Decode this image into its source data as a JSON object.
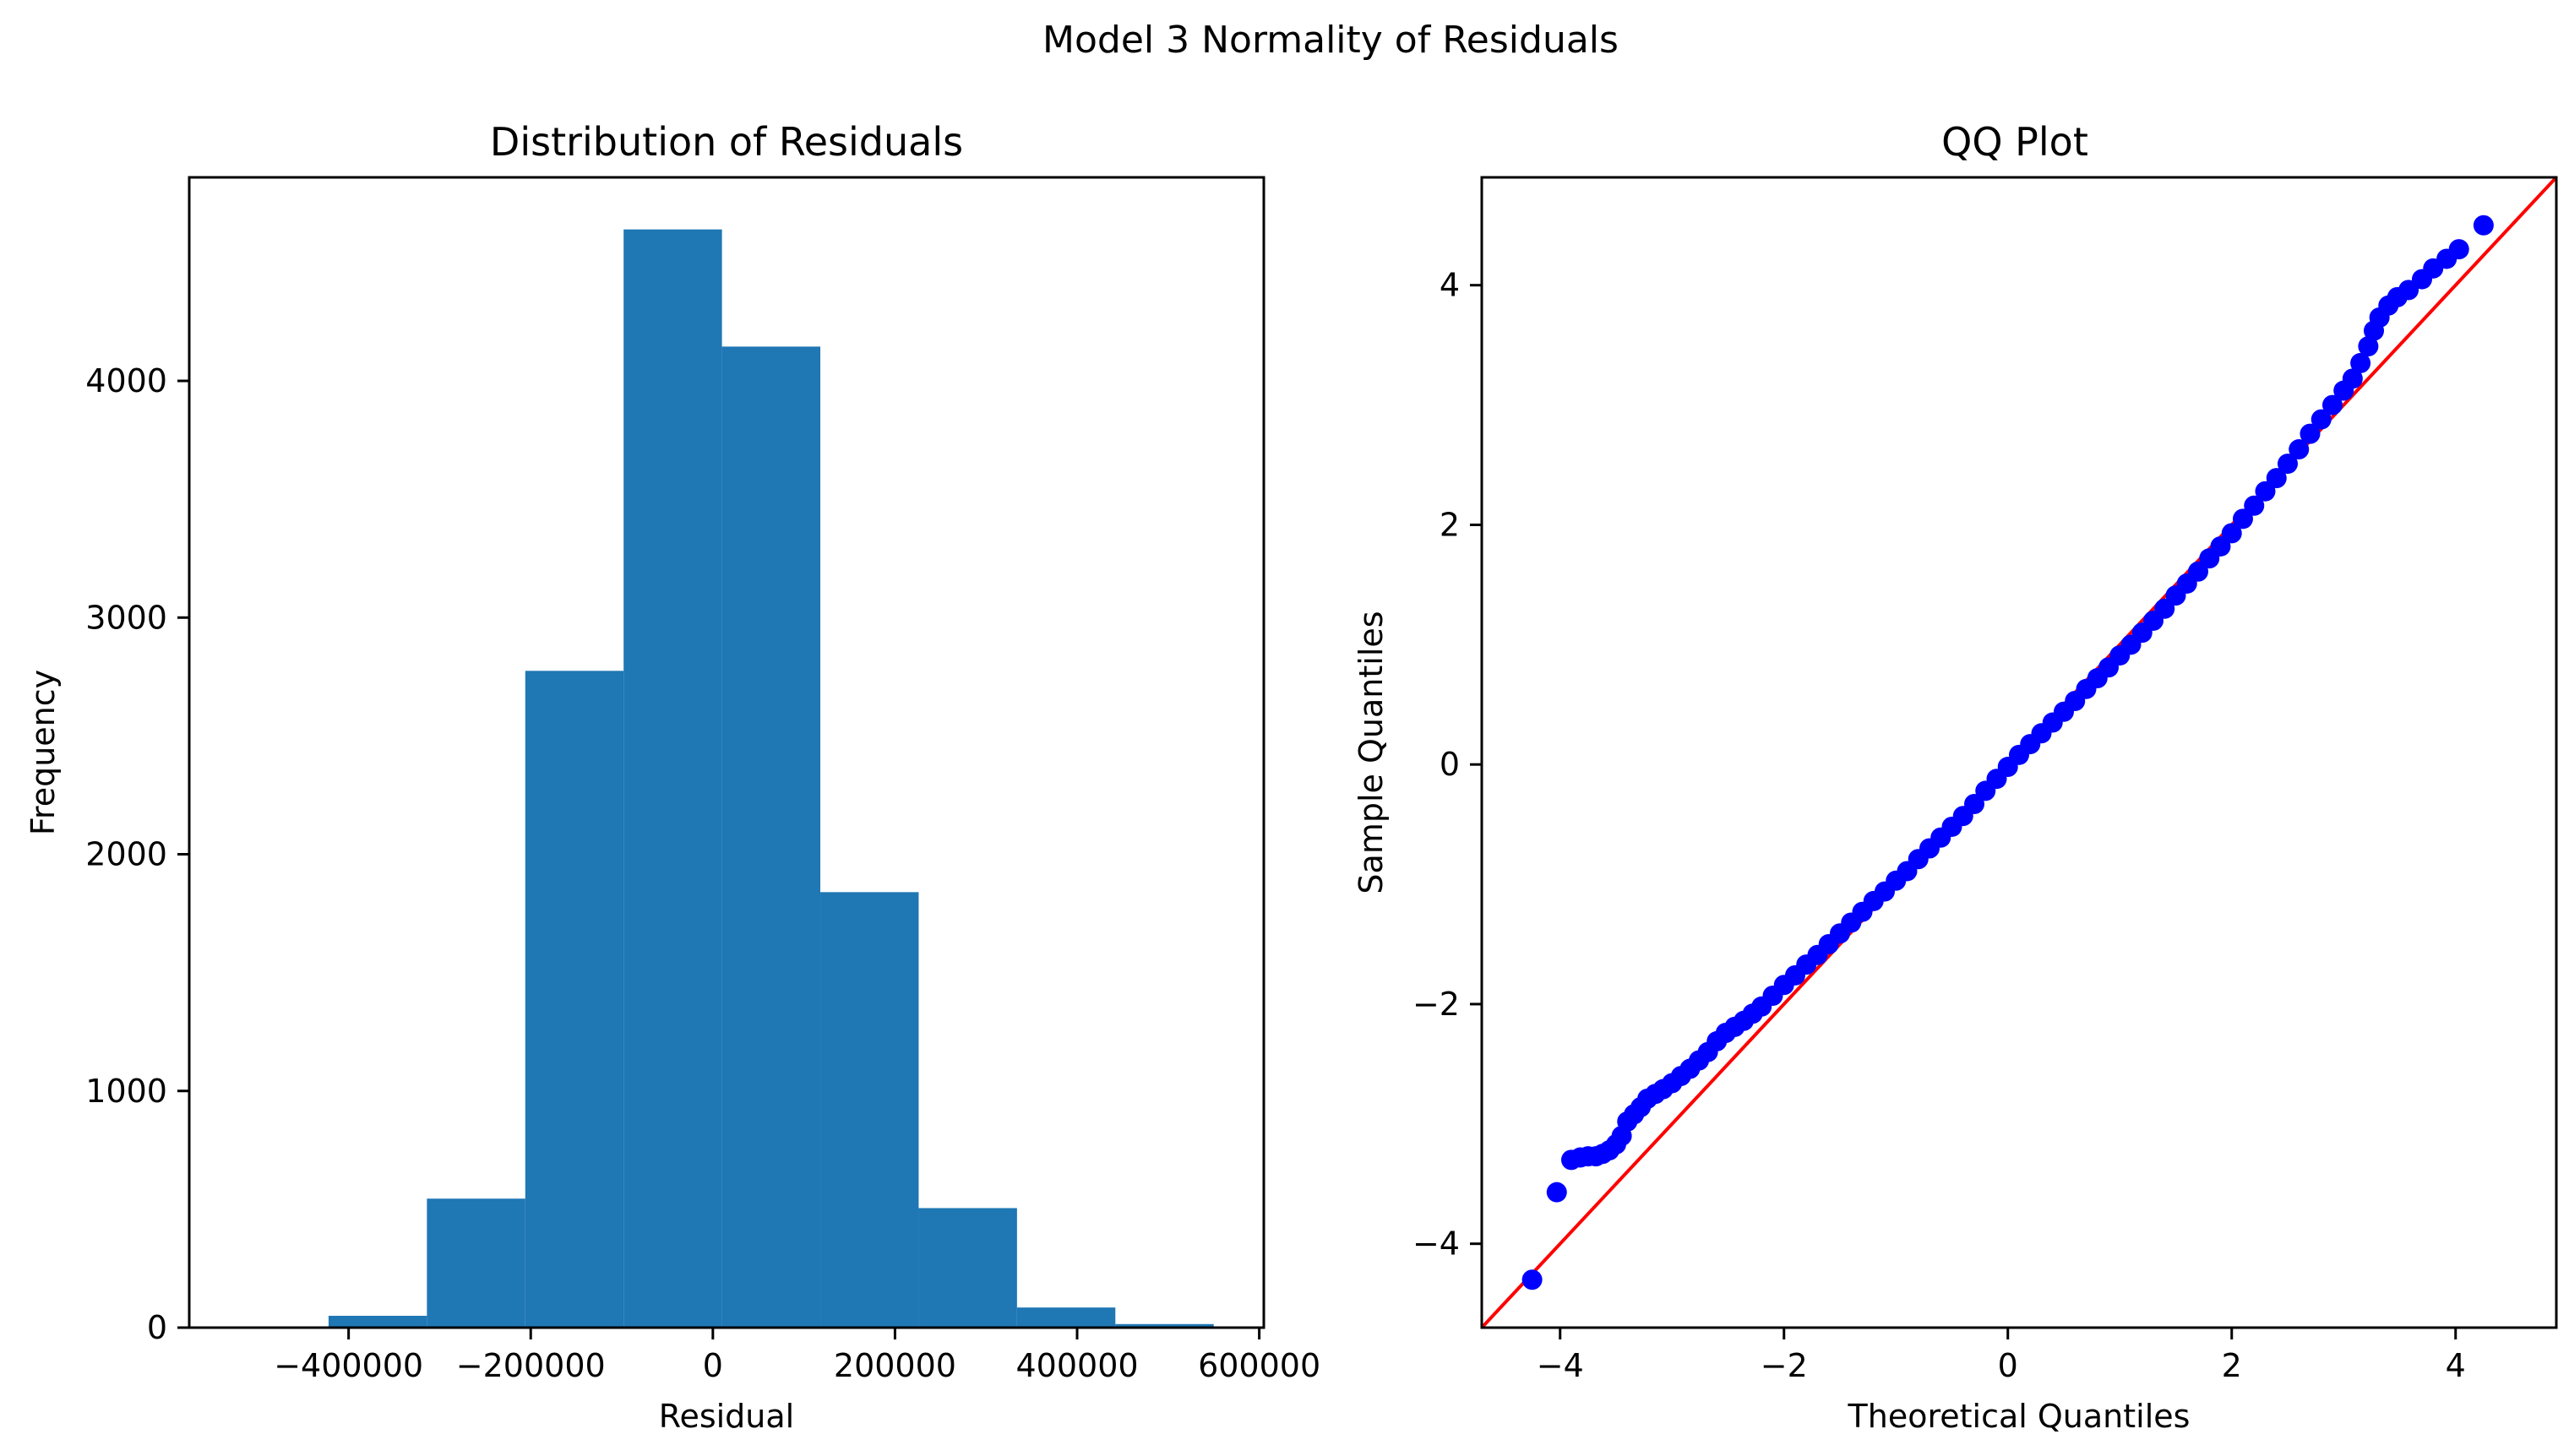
{
  "figure": {
    "suptitle": "Model 3 Normality of Residuals"
  },
  "colors": {
    "bar": "#1f77b4",
    "points": "#0000ff",
    "reference_line": "#ff0000",
    "axes": "#000000"
  },
  "chart_data": [
    {
      "type": "bar",
      "subtype": "histogram",
      "title": "Distribution of Residuals",
      "xlabel": "Residual",
      "ylabel": "Frequency",
      "xlim": [
        -575000,
        605000
      ],
      "ylim": [
        0,
        4860
      ],
      "xticks": [
        -400000,
        -200000,
        0,
        200000,
        400000,
        600000
      ],
      "xtick_labels": [
        "−400000",
        "−200000",
        "0",
        "200000",
        "400000",
        "600000"
      ],
      "yticks": [
        0,
        1000,
        2000,
        3000,
        4000
      ],
      "ytick_labels": [
        "0",
        "1000",
        "2000",
        "3000",
        "4000"
      ],
      "bins": [
        {
          "x0": -422000,
          "x1": -314000,
          "value": 50
        },
        {
          "x0": -314000,
          "x1": -206000,
          "value": 545
        },
        {
          "x0": -206000,
          "x1": -98000,
          "value": 2775
        },
        {
          "x0": -98000,
          "x1": 10000,
          "value": 4640
        },
        {
          "x0": 10000,
          "x1": 118000,
          "value": 4145
        },
        {
          "x0": 118000,
          "x1": 226000,
          "value": 1840
        },
        {
          "x0": 226000,
          "x1": 334000,
          "value": 505
        },
        {
          "x0": 334000,
          "x1": 442000,
          "value": 85
        },
        {
          "x0": 442000,
          "x1": 550000,
          "value": 15
        }
      ]
    },
    {
      "type": "scatter",
      "subtype": "qq-plot",
      "title": "QQ Plot",
      "xlabel": "Theoretical Quantiles",
      "ylabel": "Sample Quantiles",
      "xlim": [
        -4.7,
        4.9
      ],
      "ylim": [
        -4.7,
        4.9
      ],
      "xticks": [
        -4,
        -2,
        0,
        2,
        4
      ],
      "xtick_labels": [
        "−4",
        "−2",
        "0",
        "2",
        "4"
      ],
      "yticks": [
        -4,
        -2,
        0,
        2,
        4
      ],
      "ytick_labels": [
        "−4",
        "−2",
        "0",
        "2",
        "4"
      ],
      "reference_line": {
        "slope": 1,
        "intercept": 0
      },
      "points": [
        [
          -4.25,
          -4.3
        ],
        [
          -4.03,
          -3.57
        ],
        [
          -3.9,
          -3.3
        ],
        [
          -3.82,
          -3.28
        ],
        [
          -3.75,
          -3.27
        ],
        [
          -3.68,
          -3.27
        ],
        [
          -3.62,
          -3.25
        ],
        [
          -3.56,
          -3.22
        ],
        [
          -3.5,
          -3.17
        ],
        [
          -3.45,
          -3.1
        ],
        [
          -3.4,
          -2.98
        ],
        [
          -3.34,
          -2.92
        ],
        [
          -3.28,
          -2.86
        ],
        [
          -3.22,
          -2.79
        ],
        [
          -3.15,
          -2.75
        ],
        [
          -3.08,
          -2.71
        ],
        [
          -3.0,
          -2.66
        ],
        [
          -2.92,
          -2.6
        ],
        [
          -2.84,
          -2.54
        ],
        [
          -2.76,
          -2.47
        ],
        [
          -2.68,
          -2.4
        ],
        [
          -2.6,
          -2.31
        ],
        [
          -2.52,
          -2.24
        ],
        [
          -2.44,
          -2.19
        ],
        [
          -2.36,
          -2.14
        ],
        [
          -2.28,
          -2.08
        ],
        [
          -2.2,
          -2.02
        ],
        [
          -2.1,
          -1.93
        ],
        [
          -2.0,
          -1.84
        ],
        [
          -1.9,
          -1.76
        ],
        [
          -1.8,
          -1.67
        ],
        [
          -1.7,
          -1.59
        ],
        [
          -1.6,
          -1.5
        ],
        [
          -1.5,
          -1.41
        ],
        [
          -1.4,
          -1.32
        ],
        [
          -1.3,
          -1.23
        ],
        [
          -1.2,
          -1.14
        ],
        [
          -1.1,
          -1.06
        ],
        [
          -1.0,
          -0.97
        ],
        [
          -0.9,
          -0.89
        ],
        [
          -0.8,
          -0.79
        ],
        [
          -0.7,
          -0.7
        ],
        [
          -0.6,
          -0.61
        ],
        [
          -0.5,
          -0.52
        ],
        [
          -0.4,
          -0.43
        ],
        [
          -0.3,
          -0.33
        ],
        [
          -0.2,
          -0.22
        ],
        [
          -0.1,
          -0.12
        ],
        [
          0.0,
          -0.02
        ],
        [
          0.1,
          0.08
        ],
        [
          0.2,
          0.17
        ],
        [
          0.3,
          0.26
        ],
        [
          0.4,
          0.35
        ],
        [
          0.5,
          0.44
        ],
        [
          0.6,
          0.53
        ],
        [
          0.7,
          0.63
        ],
        [
          0.8,
          0.72
        ],
        [
          0.9,
          0.81
        ],
        [
          1.0,
          0.91
        ],
        [
          1.1,
          1.0
        ],
        [
          1.2,
          1.1
        ],
        [
          1.3,
          1.2
        ],
        [
          1.4,
          1.3
        ],
        [
          1.5,
          1.41
        ],
        [
          1.6,
          1.51
        ],
        [
          1.7,
          1.61
        ],
        [
          1.8,
          1.72
        ],
        [
          1.9,
          1.82
        ],
        [
          2.0,
          1.93
        ],
        [
          2.1,
          2.05
        ],
        [
          2.2,
          2.16
        ],
        [
          2.3,
          2.28
        ],
        [
          2.4,
          2.39
        ],
        [
          2.5,
          2.51
        ],
        [
          2.6,
          2.63
        ],
        [
          2.7,
          2.76
        ],
        [
          2.8,
          2.88
        ],
        [
          2.9,
          3.0
        ],
        [
          3.0,
          3.12
        ],
        [
          3.08,
          3.22
        ],
        [
          3.15,
          3.35
        ],
        [
          3.22,
          3.49
        ],
        [
          3.27,
          3.62
        ],
        [
          3.32,
          3.73
        ],
        [
          3.4,
          3.83
        ],
        [
          3.48,
          3.9
        ],
        [
          3.58,
          3.96
        ],
        [
          3.7,
          4.05
        ],
        [
          3.8,
          4.14
        ],
        [
          3.92,
          4.22
        ],
        [
          4.03,
          4.3
        ],
        [
          4.25,
          4.5
        ]
      ]
    }
  ]
}
